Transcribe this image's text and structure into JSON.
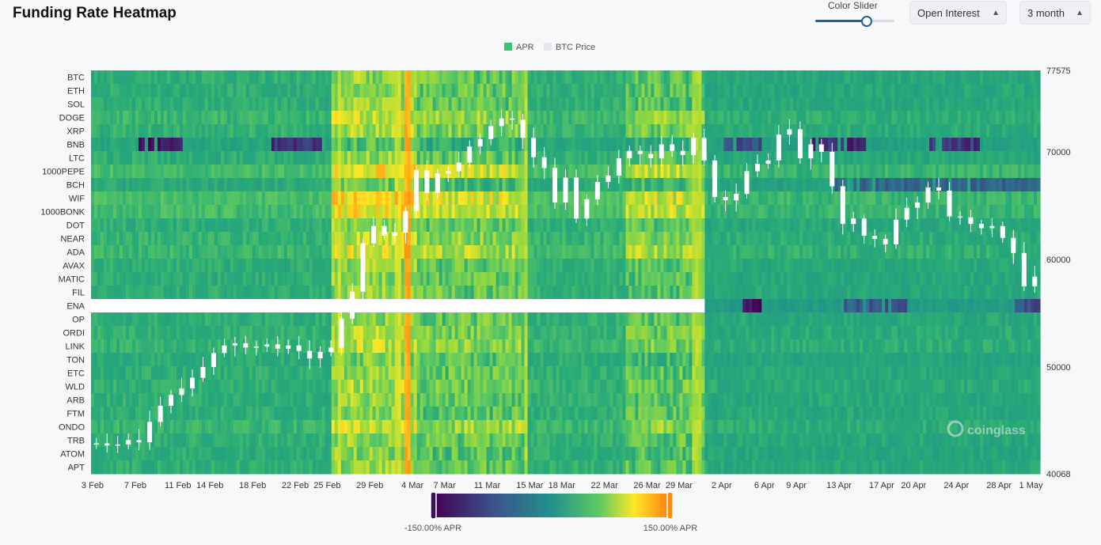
{
  "header": {
    "title": "Funding Rate Heatmap",
    "color_slider_label": "Color Slider",
    "color_slider_value": 0.65,
    "metric_select": "Open Interest",
    "range_select": "3 month"
  },
  "legend": {
    "apr_label": "APR",
    "btc_label": "BTC Price",
    "apr_color": "#3bc46f",
    "btc_color": "#e4e6ea"
  },
  "colorbar": {
    "min_label": "-150.00% APR",
    "max_label": "150.00% APR"
  },
  "watermark": "coinglass",
  "chart_data": {
    "type": "heatmap",
    "title": "Funding Rate Heatmap",
    "rows": [
      "BTC",
      "ETH",
      "SOL",
      "DOGE",
      "XRP",
      "BNB",
      "LTC",
      "1000PEPE",
      "BCH",
      "WIF",
      "1000BONK",
      "DOT",
      "NEAR",
      "ADA",
      "AVAX",
      "MATIC",
      "FIL",
      "ENA",
      "OP",
      "ORDI",
      "LINK",
      "TON",
      "ETC",
      "WLD",
      "ARB",
      "FTM",
      "ONDO",
      "TRB",
      "ATOM",
      "APT"
    ],
    "x_tick_labels": [
      "3 Feb",
      "7 Feb",
      "11 Feb",
      "14 Feb",
      "18 Feb",
      "22 Feb",
      "25 Feb",
      "29 Feb",
      "4 Mar",
      "7 Mar",
      "11 Mar",
      "15 Mar",
      "18 Mar",
      "22 Mar",
      "26 Mar",
      "29 Mar",
      "2 Apr",
      "6 Apr",
      "9 Apr",
      "13 Apr",
      "17 Apr",
      "20 Apr",
      "24 Apr",
      "28 Apr",
      "1 May"
    ],
    "x_tick_days": [
      0,
      4,
      8,
      11,
      15,
      19,
      22,
      26,
      30,
      33,
      37,
      41,
      44,
      48,
      52,
      55,
      59,
      63,
      66,
      70,
      74,
      77,
      81,
      85,
      88
    ],
    "x_range_days": [
      0,
      89
    ],
    "color_scale": {
      "min": -150,
      "max": 150,
      "unit": "% APR"
    },
    "y_right_ticks": [
      77575,
      70000,
      60000,
      50000,
      40068
    ],
    "y_right_range": [
      40068,
      77575
    ],
    "regimes": [
      {
        "start": 0,
        "end": 22,
        "base": 12
      },
      {
        "start": 22.5,
        "end": 30.5,
        "base": 60
      },
      {
        "start": 30.5,
        "end": 41,
        "base": 40
      },
      {
        "start": 41,
        "end": 50,
        "base": 14
      },
      {
        "start": 50,
        "end": 57.5,
        "base": 36
      },
      {
        "start": 57.5,
        "end": 89,
        "base": 4
      }
    ],
    "hot_columns": [
      {
        "start": 23.0,
        "end": 23.4,
        "value": 95
      },
      {
        "start": 28.6,
        "end": 29.1,
        "value": 95
      },
      {
        "start": 29.3,
        "end": 30.1,
        "value": 140
      },
      {
        "start": 40.5,
        "end": 41.0,
        "value": 85
      },
      {
        "start": 56.5,
        "end": 57.3,
        "value": 85
      }
    ],
    "row_bias": {
      "DOGE": 22,
      "XRP": 10,
      "BNB": -30,
      "1000PEPE": 42,
      "BCH": -14,
      "WIF": 48,
      "1000BONK": 42,
      "NEAR": 16,
      "ADA": 28,
      "ENA": -50,
      "ORDI": 10,
      "LINK": 16,
      "TON": -10,
      "WLD": 8,
      "ONDO": 22,
      "ATOM": -6
    },
    "row_missing": [
      {
        "row": "ENA",
        "start": 0,
        "end": 57.5
      }
    ],
    "cold_spans": [
      {
        "row": "BNB",
        "start": 4.4,
        "end": 8.6,
        "value": -130
      },
      {
        "row": "BNB",
        "start": 16.8,
        "end": 21.6,
        "value": -110
      },
      {
        "row": "BNB",
        "start": 59.4,
        "end": 63.0,
        "value": -90
      },
      {
        "row": "BNB",
        "start": 67.5,
        "end": 72.8,
        "value": -120
      },
      {
        "row": "BNB",
        "start": 78.5,
        "end": 83.8,
        "value": -110
      },
      {
        "row": "BCH",
        "start": 69.8,
        "end": 89,
        "value": -70
      },
      {
        "row": "ENA",
        "start": 61.0,
        "end": 63.0,
        "value": -140
      },
      {
        "row": "ENA",
        "start": 70.5,
        "end": 76.5,
        "value": -80
      },
      {
        "row": "ENA",
        "start": 86.5,
        "end": 89.0,
        "value": -90
      }
    ],
    "btc_price_daily": [
      42900,
      42700,
      42800,
      43200,
      43000,
      44900,
      46400,
      47400,
      48000,
      49000,
      50000,
      51300,
      52000,
      52200,
      51800,
      51900,
      52100,
      51700,
      52000,
      51500,
      50800,
      51400,
      51800,
      54500,
      57000,
      61500,
      63100,
      62200,
      62500,
      64500,
      68300,
      66200,
      68000,
      68200,
      69000,
      70500,
      71200,
      72400,
      73100,
      73000,
      71300,
      69500,
      68500,
      65300,
      67600,
      63800,
      65600,
      67200,
      67800,
      69400,
      70100,
      69800,
      69400,
      70700,
      70100,
      69700,
      71300,
      69200,
      65800,
      65500,
      66100,
      68200,
      68900,
      69200,
      71600,
      72100,
      69400,
      70700,
      70000,
      66800,
      63300,
      63800,
      62200,
      61900,
      61400,
      63700,
      64800,
      65300,
      66700,
      66400,
      64000,
      63900,
      63300,
      62900,
      63100,
      62000,
      60600,
      57500,
      58400
    ]
  }
}
